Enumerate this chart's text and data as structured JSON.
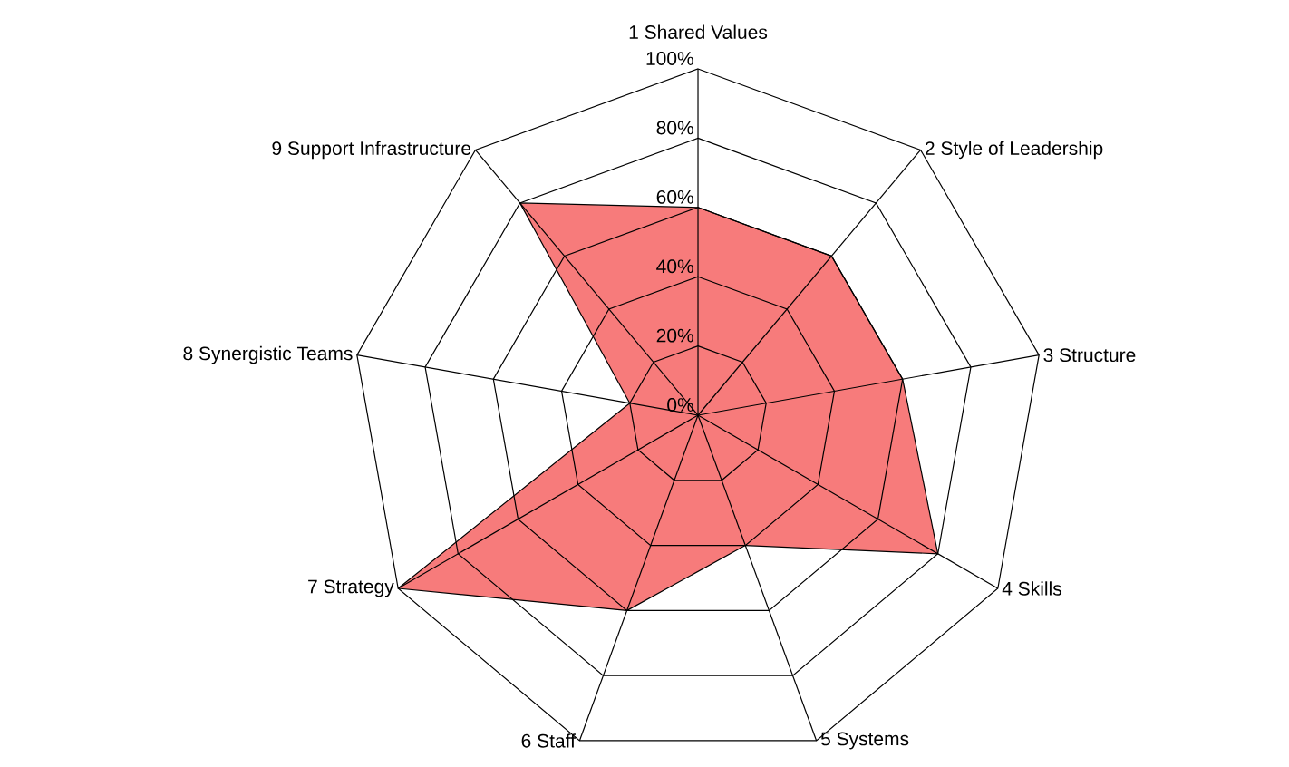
{
  "chart_data": {
    "type": "radar",
    "categories": [
      "1 Shared Values",
      "2 Style of Leadership",
      "3 Structure",
      "4 Skills",
      "5 Systems",
      "6 Staff",
      "7 Strategy",
      "8 Synergistic Teams",
      "9 Support Infrastructure"
    ],
    "series": [
      {
        "color": "#f77b7b",
        "values": [
          60,
          60,
          60,
          80,
          40,
          60,
          100,
          20,
          80
        ]
      }
    ],
    "ylim": [
      0,
      100
    ],
    "yticks": [
      {
        "value": 0,
        "label": "0%"
      },
      {
        "value": 20,
        "label": "20%"
      },
      {
        "value": 40,
        "label": "40%"
      },
      {
        "value": 60,
        "label": "60%"
      },
      {
        "value": 80,
        "label": "80%"
      },
      {
        "value": 100,
        "label": "100%"
      }
    ],
    "grid": true
  }
}
